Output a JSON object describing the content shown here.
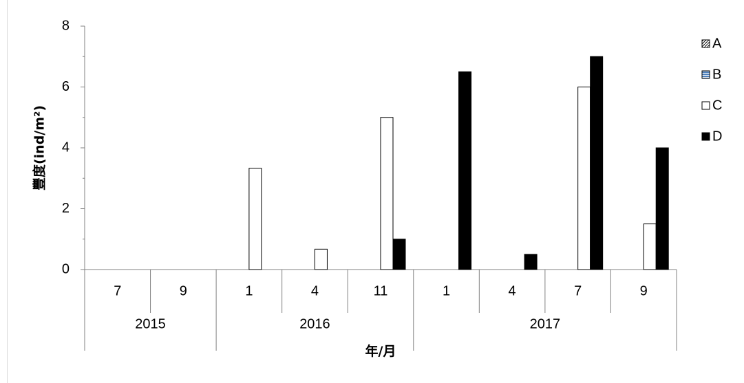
{
  "chart_data": {
    "type": "bar",
    "ylabel": "豐度(ind/m²)",
    "xlabel": "年/月",
    "ylim": [
      0,
      8
    ],
    "y_ticks": [
      "0",
      "2",
      "4",
      "6",
      "8"
    ],
    "categories": [
      {
        "month": "7",
        "year": "2015"
      },
      {
        "month": "9",
        "year": "2015"
      },
      {
        "month": "1",
        "year": "2016"
      },
      {
        "month": "4",
        "year": "2016"
      },
      {
        "month": "11",
        "year": "2016"
      },
      {
        "month": "1",
        "year": "2017"
      },
      {
        "month": "4",
        "year": "2017"
      },
      {
        "month": "7",
        "year": "2017"
      },
      {
        "month": "9",
        "year": "2017"
      }
    ],
    "year_groups": [
      {
        "label": "2015",
        "count": 2
      },
      {
        "label": "2016",
        "count": 3
      },
      {
        "label": "2017",
        "count": 4
      }
    ],
    "series": [
      {
        "name": "A",
        "color": "#ffffff",
        "pattern": "diagonal-hatch",
        "values": [
          0,
          0,
          0,
          0,
          0,
          0,
          0,
          0,
          0
        ]
      },
      {
        "name": "B",
        "color": "#4f81bd",
        "pattern": "horizontal-hatch",
        "values": [
          0,
          0,
          0,
          0,
          0,
          0,
          0,
          0,
          0
        ]
      },
      {
        "name": "C",
        "color": "#ffffff",
        "pattern": "solid",
        "values": [
          0,
          0,
          3.33,
          0.67,
          5,
          0,
          0,
          6,
          1.5
        ]
      },
      {
        "name": "D",
        "color": "#000000",
        "pattern": "solid",
        "values": [
          0,
          0,
          0,
          0,
          1,
          6.5,
          0.5,
          7,
          4
        ]
      }
    ],
    "legend_position": "right",
    "grid": false
  }
}
